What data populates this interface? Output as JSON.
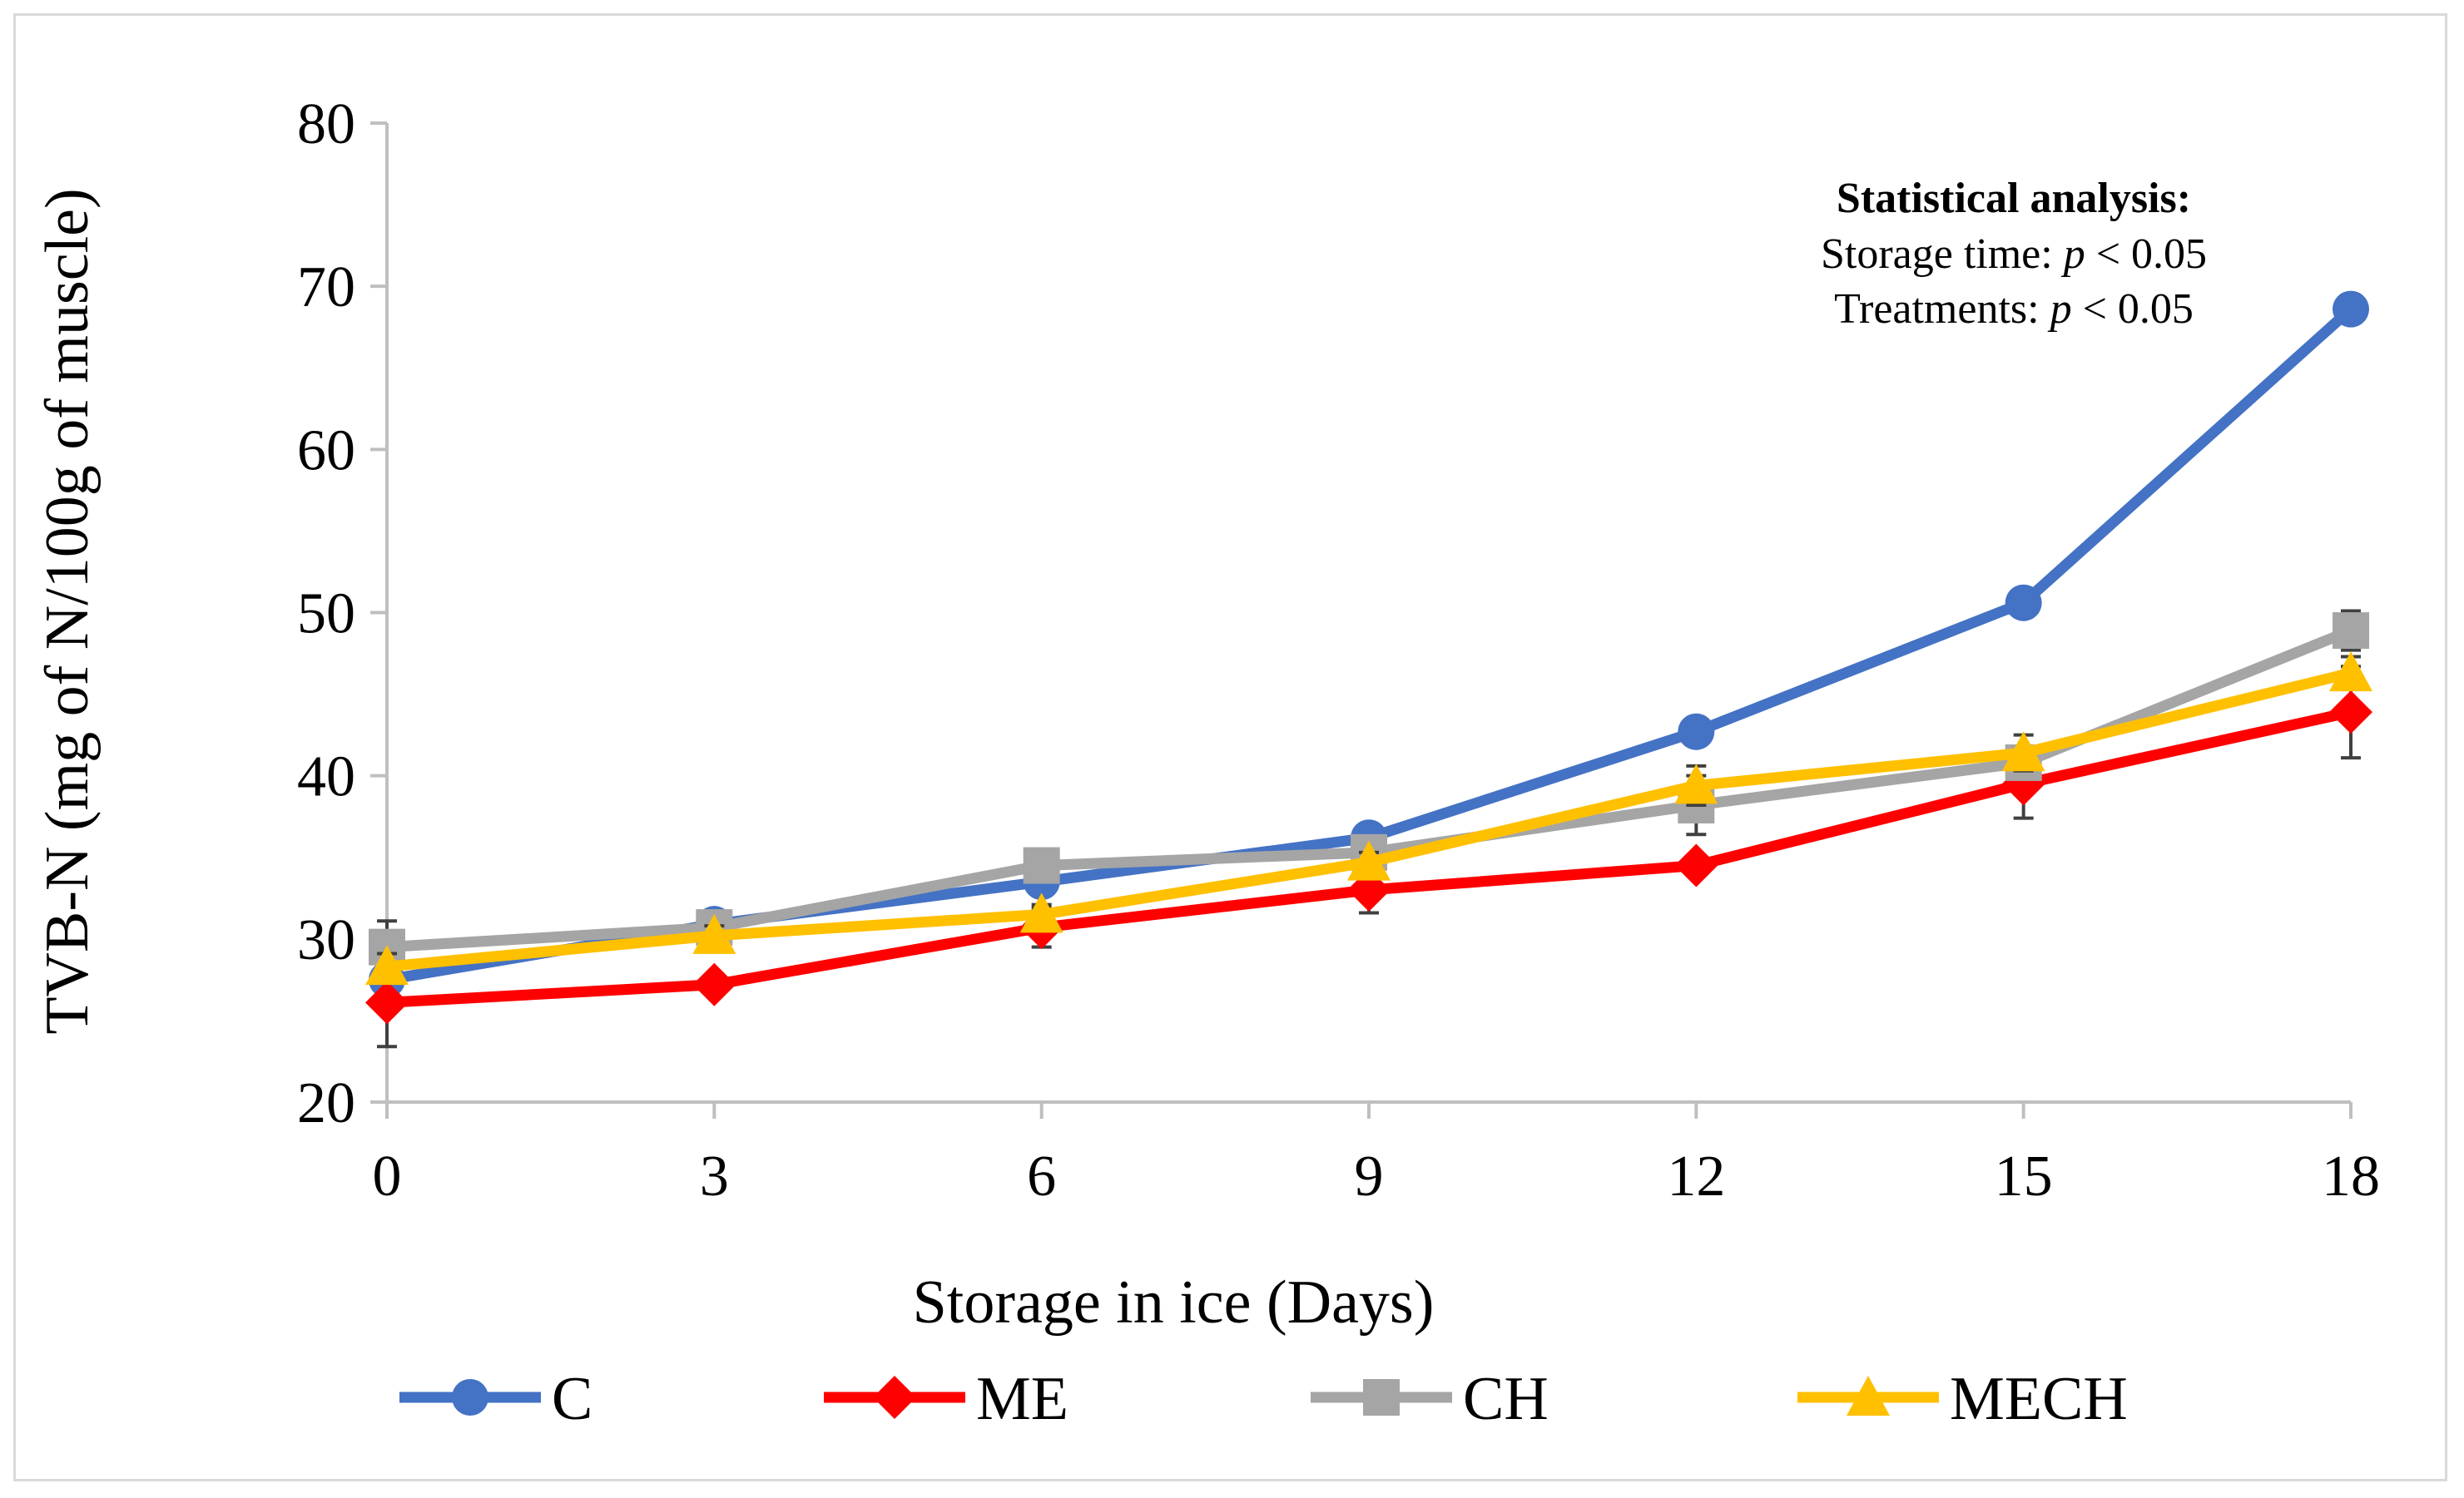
{
  "chart_data": {
    "type": "line",
    "title": "",
    "xlabel": "Storage in ice (Days)",
    "ylabel": "TVB-N (mg of N/100g of muscle)",
    "x": [
      0,
      3,
      6,
      9,
      12,
      15,
      18
    ],
    "x_tick_labels": [
      "0",
      "3",
      "6",
      "9",
      "12",
      "15",
      "18"
    ],
    "ylim": [
      20,
      80
    ],
    "y_ticks": [
      20,
      30,
      40,
      50,
      60,
      70,
      80
    ],
    "y_tick_labels": [
      "20",
      "30",
      "40",
      "50",
      "60",
      "70",
      "80"
    ],
    "grid": false,
    "legend_position": "bottom",
    "series": [
      {
        "name": "C",
        "color": "#4472C4",
        "marker": "circle",
        "values": [
          27.5,
          30.9,
          33.5,
          36.2,
          42.7,
          50.6,
          68.6
        ],
        "errors": [
          0.6,
          0.5,
          0.6,
          0.6,
          0.6,
          0.6,
          0.6
        ]
      },
      {
        "name": "ME",
        "color": "#FF0000",
        "marker": "diamond",
        "values": [
          26.1,
          27.2,
          30.7,
          33.0,
          34.5,
          39.5,
          43.9
        ],
        "errors": [
          2.7,
          0.6,
          1.2,
          1.4,
          0.6,
          2.1,
          2.8
        ]
      },
      {
        "name": "CH",
        "color": "#A5A5A5",
        "marker": "square",
        "values": [
          29.5,
          30.7,
          34.5,
          35.3,
          38.2,
          40.8,
          48.9
        ],
        "errors": [
          1.6,
          0.6,
          0.6,
          0.6,
          1.8,
          1.0,
          1.2
        ]
      },
      {
        "name": "MECH",
        "color": "#FFC000",
        "marker": "triangle",
        "values": [
          28.3,
          30.2,
          31.5,
          34.7,
          39.4,
          41.4,
          46.3
        ],
        "errors": [
          0.8,
          0.6,
          0.6,
          0.6,
          1.2,
          1.1,
          1.0
        ]
      }
    ],
    "annotations": {
      "heading": "Statistical analysis:",
      "line1_label": "Storage time: ",
      "line1_symbol": "p",
      "line1_value": " < 0.05",
      "line2_label": "Treatments: ",
      "line2_symbol": "p",
      "line2_value": " < 0.05"
    }
  }
}
